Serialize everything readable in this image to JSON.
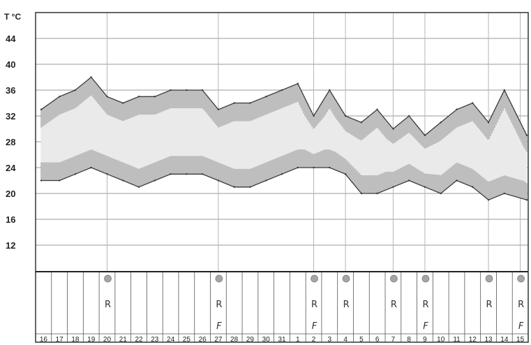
{
  "chart_data": {
    "type": "area",
    "y_unit_label": "T °C",
    "yticks": [
      12,
      16,
      20,
      24,
      28,
      32,
      36,
      40,
      44
    ],
    "ylim": [
      8,
      48
    ],
    "grid": true,
    "x": [
      "16",
      "17",
      "18",
      "19",
      "20",
      "21",
      "22",
      "23",
      "24",
      "25",
      "26",
      "27",
      "28",
      "29",
      "30",
      "31",
      "1",
      "2",
      "3",
      "4",
      "5",
      "6",
      "7",
      "8",
      "9",
      "10",
      "11",
      "12",
      "13",
      "14",
      "15"
    ],
    "series": [
      {
        "values": [
          33,
          35,
          36,
          38,
          35,
          34,
          35,
          35,
          36,
          36,
          36,
          33,
          34,
          34,
          35,
          36,
          37,
          32,
          36,
          32,
          31,
          33,
          30,
          32,
          29,
          31,
          33,
          34,
          31,
          36,
          29
        ]
      },
      {
        "values": [
          22,
          22,
          23,
          24,
          23,
          22,
          21,
          22,
          23,
          23,
          23,
          22,
          21,
          21,
          22,
          23,
          24,
          24,
          24,
          23,
          20,
          20,
          21,
          22,
          21,
          20,
          22,
          21,
          19,
          20,
          19
        ]
      }
    ],
    "markers": {
      "circle_days": [
        "20",
        "27",
        "2",
        "4",
        "7",
        "9",
        "13",
        "15"
      ],
      "r_symbol": "R",
      "r_days": [
        "20",
        "27",
        "2",
        "4",
        "7",
        "9",
        "13",
        "15"
      ],
      "f_symbol": "F",
      "f_days": [
        "27",
        "2",
        "9",
        "15"
      ]
    }
  }
}
